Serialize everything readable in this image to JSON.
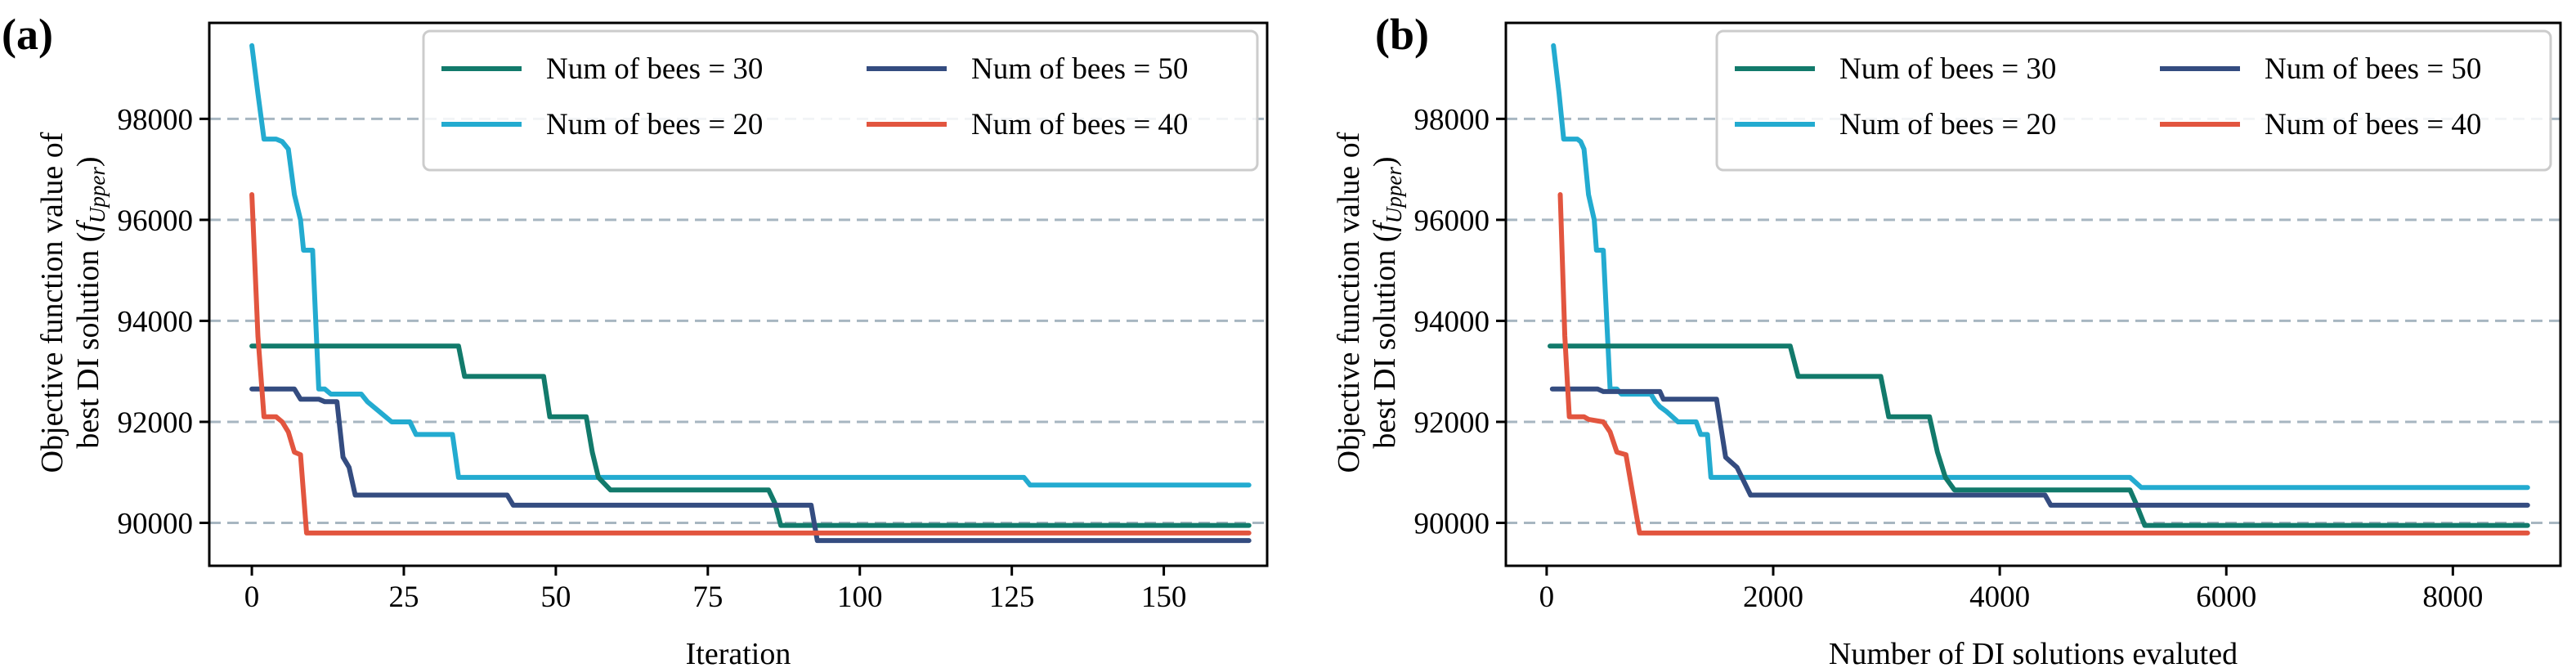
{
  "colors": {
    "bees_30": "#127a6b",
    "bees_20": "#23abd0",
    "bees_50": "#344c80",
    "bees_40": "#e2553f",
    "grid": "#a7b6c1"
  },
  "panels": [
    {
      "letter": "(a)"
    },
    {
      "letter": "(b)"
    }
  ],
  "chart_data": [
    {
      "type": "line",
      "panel_label": "(a)",
      "xlabel": "Iteration",
      "ylabel_line1": "Objective function value of",
      "ylabel_line2": "best DI solution (",
      "ylabel_sym": "f",
      "ylabel_sub": "Upper",
      "ylabel_close": ")",
      "xlim": [
        -7,
        167
      ],
      "ylim": [
        89150,
        99900
      ],
      "xticks": [
        0,
        25,
        50,
        75,
        100,
        125,
        150
      ],
      "xtick_labels": [
        "0",
        "25",
        "50",
        "75",
        "100",
        "125",
        "150"
      ],
      "yticks": [
        90000,
        92000,
        94000,
        96000,
        98000
      ],
      "ytick_labels": [
        "90000",
        "92000",
        "94000",
        "96000",
        "98000"
      ],
      "grid": "horizontal dashed",
      "legend_position": "top-right",
      "series": [
        {
          "name": "Num of bees = 30",
          "color_key": "bees_30",
          "points": [
            [
              0,
              93500
            ],
            [
              34,
              93500
            ],
            [
              35,
              92900
            ],
            [
              48,
              92900
            ],
            [
              49,
              92100
            ],
            [
              55,
              92100
            ],
            [
              56,
              91400
            ],
            [
              57,
              90900
            ],
            [
              59,
              90650
            ],
            [
              85,
              90650
            ],
            [
              86,
              90400
            ],
            [
              87,
              89950
            ],
            [
              164,
              89950
            ]
          ]
        },
        {
          "name": "Num of bees = 20",
          "color_key": "bees_20",
          "points": [
            [
              0,
              99450
            ],
            [
              1,
              98500
            ],
            [
              2,
              97600
            ],
            [
              4,
              97600
            ],
            [
              5,
              97550
            ],
            [
              6,
              97400
            ],
            [
              7,
              96500
            ],
            [
              8,
              96000
            ],
            [
              8.5,
              95400
            ],
            [
              10,
              95400
            ],
            [
              11,
              92650
            ],
            [
              12,
              92650
            ],
            [
              13,
              92550
            ],
            [
              18,
              92550
            ],
            [
              19,
              92400
            ],
            [
              20,
              92300
            ],
            [
              21,
              92200
            ],
            [
              23,
              92000
            ],
            [
              26,
              92000
            ],
            [
              27,
              91750
            ],
            [
              33,
              91750
            ],
            [
              34,
              90900
            ],
            [
              60,
              90900
            ],
            [
              127,
              90900
            ],
            [
              128,
              90750
            ],
            [
              164,
              90750
            ]
          ]
        },
        {
          "name": "Num of bees = 50",
          "color_key": "bees_50",
          "points": [
            [
              0,
              92650
            ],
            [
              7,
              92650
            ],
            [
              8,
              92450
            ],
            [
              11,
              92450
            ],
            [
              12,
              92400
            ],
            [
              14,
              92400
            ],
            [
              15,
              91300
            ],
            [
              16,
              91100
            ],
            [
              17,
              90550
            ],
            [
              42,
              90550
            ],
            [
              43,
              90350
            ],
            [
              88,
              90350
            ],
            [
              92,
              90350
            ],
            [
              93,
              89650
            ],
            [
              164,
              89650
            ]
          ]
        },
        {
          "name": "Num of bees = 40",
          "color_key": "bees_40",
          "points": [
            [
              0,
              96500
            ],
            [
              1,
              93700
            ],
            [
              2,
              92100
            ],
            [
              4,
              92100
            ],
            [
              5,
              92000
            ],
            [
              6,
              91800
            ],
            [
              7,
              91400
            ],
            [
              8,
              91350
            ],
            [
              9,
              89800
            ],
            [
              164,
              89800
            ]
          ]
        }
      ]
    },
    {
      "type": "line",
      "panel_label": "(b)",
      "xlabel": "Number of DI solutions evaluted",
      "ylabel_line1": "Objective function value of",
      "ylabel_line2": "best DI solution (",
      "ylabel_sym": "f",
      "ylabel_sub": "Upper",
      "ylabel_close": ")",
      "xlim": [
        -360,
        8950
      ],
      "ylim": [
        89150,
        99900
      ],
      "xticks": [
        0,
        2000,
        4000,
        6000,
        8000
      ],
      "xtick_labels": [
        "0",
        "2000",
        "4000",
        "6000",
        "8000"
      ],
      "yticks": [
        90000,
        92000,
        94000,
        96000,
        98000
      ],
      "ytick_labels": [
        "90000",
        "92000",
        "94000",
        "96000",
        "98000"
      ],
      "grid": "horizontal dashed",
      "legend_position": "top-right",
      "series": [
        {
          "name": "Num of bees = 30",
          "color_key": "bees_30",
          "points": [
            [
              30,
              93500
            ],
            [
              2150,
              93500
            ],
            [
              2220,
              92900
            ],
            [
              2950,
              92900
            ],
            [
              3020,
              92100
            ],
            [
              3380,
              92100
            ],
            [
              3450,
              91400
            ],
            [
              3520,
              90900
            ],
            [
              3600,
              90650
            ],
            [
              5150,
              90650
            ],
            [
              5200,
              90400
            ],
            [
              5280,
              89950
            ],
            [
              8660,
              89950
            ]
          ]
        },
        {
          "name": "Num of bees = 20",
          "color_key": "bees_20",
          "points": [
            [
              60,
              99450
            ],
            [
              110,
              98500
            ],
            [
              150,
              97600
            ],
            [
              270,
              97600
            ],
            [
              300,
              97550
            ],
            [
              330,
              97400
            ],
            [
              370,
              96500
            ],
            [
              420,
              96000
            ],
            [
              440,
              95400
            ],
            [
              500,
              95400
            ],
            [
              560,
              92650
            ],
            [
              620,
              92650
            ],
            [
              660,
              92550
            ],
            [
              920,
              92550
            ],
            [
              960,
              92400
            ],
            [
              1000,
              92300
            ],
            [
              1060,
              92200
            ],
            [
              1160,
              92000
            ],
            [
              1320,
              92000
            ],
            [
              1360,
              91750
            ],
            [
              1420,
              91750
            ],
            [
              1450,
              90900
            ],
            [
              5150,
              90900
            ],
            [
              5250,
              90700
            ],
            [
              8660,
              90700
            ]
          ]
        },
        {
          "name": "Num of bees = 50",
          "color_key": "bees_50",
          "points": [
            [
              50,
              92650
            ],
            [
              450,
              92650
            ],
            [
              500,
              92600
            ],
            [
              1000,
              92600
            ],
            [
              1030,
              92450
            ],
            [
              1500,
              92450
            ],
            [
              1580,
              91300
            ],
            [
              1680,
              91100
            ],
            [
              1800,
              90550
            ],
            [
              4400,
              90550
            ],
            [
              4450,
              90350
            ],
            [
              8660,
              90350
            ]
          ]
        },
        {
          "name": "Num of bees = 40",
          "color_key": "bees_40",
          "points": [
            [
              120,
              96500
            ],
            [
              160,
              93700
            ],
            [
              200,
              92100
            ],
            [
              330,
              92100
            ],
            [
              370,
              92050
            ],
            [
              500,
              92000
            ],
            [
              560,
              91800
            ],
            [
              620,
              91400
            ],
            [
              700,
              91350
            ],
            [
              820,
              89800
            ],
            [
              8660,
              89800
            ]
          ]
        }
      ]
    }
  ],
  "legend": {
    "rows": [
      [
        "Num of bees = 30",
        "Num of bees = 50"
      ],
      [
        "Num of bees = 20",
        "Num of bees = 40"
      ]
    ],
    "color_keys": [
      [
        "bees_30",
        "bees_50"
      ],
      [
        "bees_20",
        "bees_40"
      ]
    ]
  }
}
